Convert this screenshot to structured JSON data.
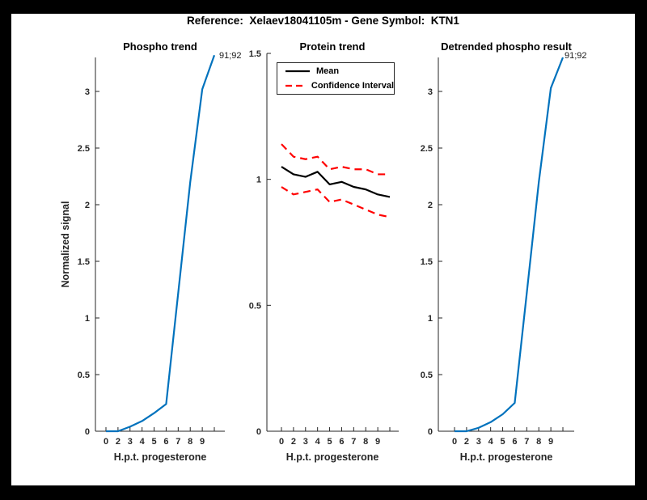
{
  "figure": {
    "title": "Reference:  Xelaev18041105m - Gene Symbol:  KTN1",
    "background_color": "#000000",
    "canvas_color": "#ffffff"
  },
  "colors": {
    "axis": "#262626",
    "phospho_blue": "#0072BD",
    "ci_red": "#FF0000",
    "mean_black": "#000000"
  },
  "chart_data": [
    {
      "type": "line",
      "title": "Phospho trend",
      "xlabel": "H.p.t. progesterone",
      "ylabel": "Normalized signal",
      "x_tick_labels": [
        "0",
        "2",
        "3",
        "4",
        "5",
        "6",
        "7",
        "8",
        "9",
        ""
      ],
      "ylim": [
        0,
        3.3
      ],
      "yticks": [
        0,
        0.5,
        1,
        1.5,
        2,
        2.5,
        3
      ],
      "ytick_labels": [
        "0",
        "0.5",
        "1",
        "1.5",
        "2",
        "2.5",
        "3"
      ],
      "grid": false,
      "series": [
        {
          "name": "phospho-signal",
          "color": "#0072BD",
          "style": "solid",
          "values": [
            0,
            0,
            0.04,
            0.09,
            0.16,
            0.24,
            1.22,
            2.2,
            3.02,
            3.32
          ]
        }
      ],
      "annotation": {
        "text": "91;92"
      }
    },
    {
      "type": "line",
      "title": "Protein trend",
      "xlabel": "H.p.t. progesterone",
      "ylabel": "",
      "x_tick_labels": [
        "0",
        "2",
        "3",
        "4",
        "5",
        "6",
        "7",
        "8",
        "9",
        ""
      ],
      "ylim": [
        0,
        1.5
      ],
      "yticks": [
        0,
        0.5,
        1,
        1.5
      ],
      "ytick_labels": [
        "0",
        "0.5",
        "1",
        "1.5"
      ],
      "grid": false,
      "legend": {
        "position": "top-left",
        "entries": [
          "Mean",
          "Confidence Interval"
        ]
      },
      "series": [
        {
          "name": "mean",
          "color": "#000000",
          "style": "solid",
          "values": [
            1.05,
            1.02,
            1.01,
            1.03,
            0.98,
            0.99,
            0.97,
            0.96,
            0.94,
            0.93
          ]
        },
        {
          "name": "ci-upper",
          "color": "#FF0000",
          "style": "dashed",
          "values": [
            1.14,
            1.09,
            1.08,
            1.09,
            1.04,
            1.05,
            1.04,
            1.04,
            1.02,
            1.02
          ]
        },
        {
          "name": "ci-lower",
          "color": "#FF0000",
          "style": "dashed",
          "values": [
            0.97,
            0.94,
            0.95,
            0.96,
            0.91,
            0.92,
            0.9,
            0.88,
            0.86,
            0.85
          ]
        }
      ]
    },
    {
      "type": "line",
      "title": "Detrended phospho result",
      "xlabel": "H.p.t. progesterone",
      "ylabel": "",
      "x_tick_labels": [
        "0",
        "2",
        "3",
        "4",
        "5",
        "6",
        "7",
        "8",
        "9",
        ""
      ],
      "ylim": [
        0,
        3.3
      ],
      "yticks": [
        0,
        0.5,
        1,
        1.5,
        2,
        2.5,
        3
      ],
      "ytick_labels": [
        "0",
        "0.5",
        "1",
        "1.5",
        "2",
        "2.5",
        "3"
      ],
      "grid": false,
      "series": [
        {
          "name": "detrended-phospho-signal",
          "color": "#0072BD",
          "style": "solid",
          "values": [
            0,
            0,
            0.03,
            0.08,
            0.15,
            0.25,
            1.22,
            2.2,
            3.03,
            3.3
          ]
        }
      ],
      "annotation": {
        "text": "91;92"
      }
    }
  ]
}
